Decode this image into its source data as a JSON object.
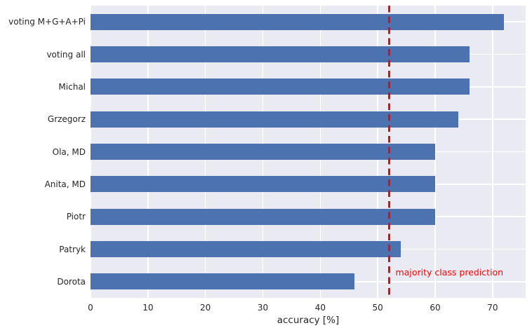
{
  "chart_data": {
    "type": "bar",
    "orientation": "horizontal",
    "title": "",
    "xlabel": "accuracy [%]",
    "ylabel": "",
    "categories": [
      "voting M+G+A+Pi",
      "voting all",
      "Michal",
      "Grzegorz",
      "Ola, MD",
      "Anita, MD",
      "Piotr",
      "Patryk",
      "Dorota"
    ],
    "values": [
      72,
      66,
      66,
      64,
      60,
      60,
      60,
      54,
      46
    ],
    "xticks": [
      0,
      10,
      20,
      30,
      40,
      50,
      60,
      70
    ],
    "xlim": [
      0,
      75.76
    ],
    "grid": true,
    "legend": "none",
    "bar_width_fraction": 0.5,
    "reference_line": {
      "x": 52,
      "style": "dashed",
      "color": "#ff0000"
    },
    "annotation": {
      "text": "majority class prediction",
      "x": 52,
      "color": "#ff0000"
    },
    "colors": {
      "bar": "#4c72b0",
      "plot_background": "#eaeaf2",
      "gridline": "#ffffff",
      "text": "#262626",
      "accent": "#ff0000"
    }
  }
}
